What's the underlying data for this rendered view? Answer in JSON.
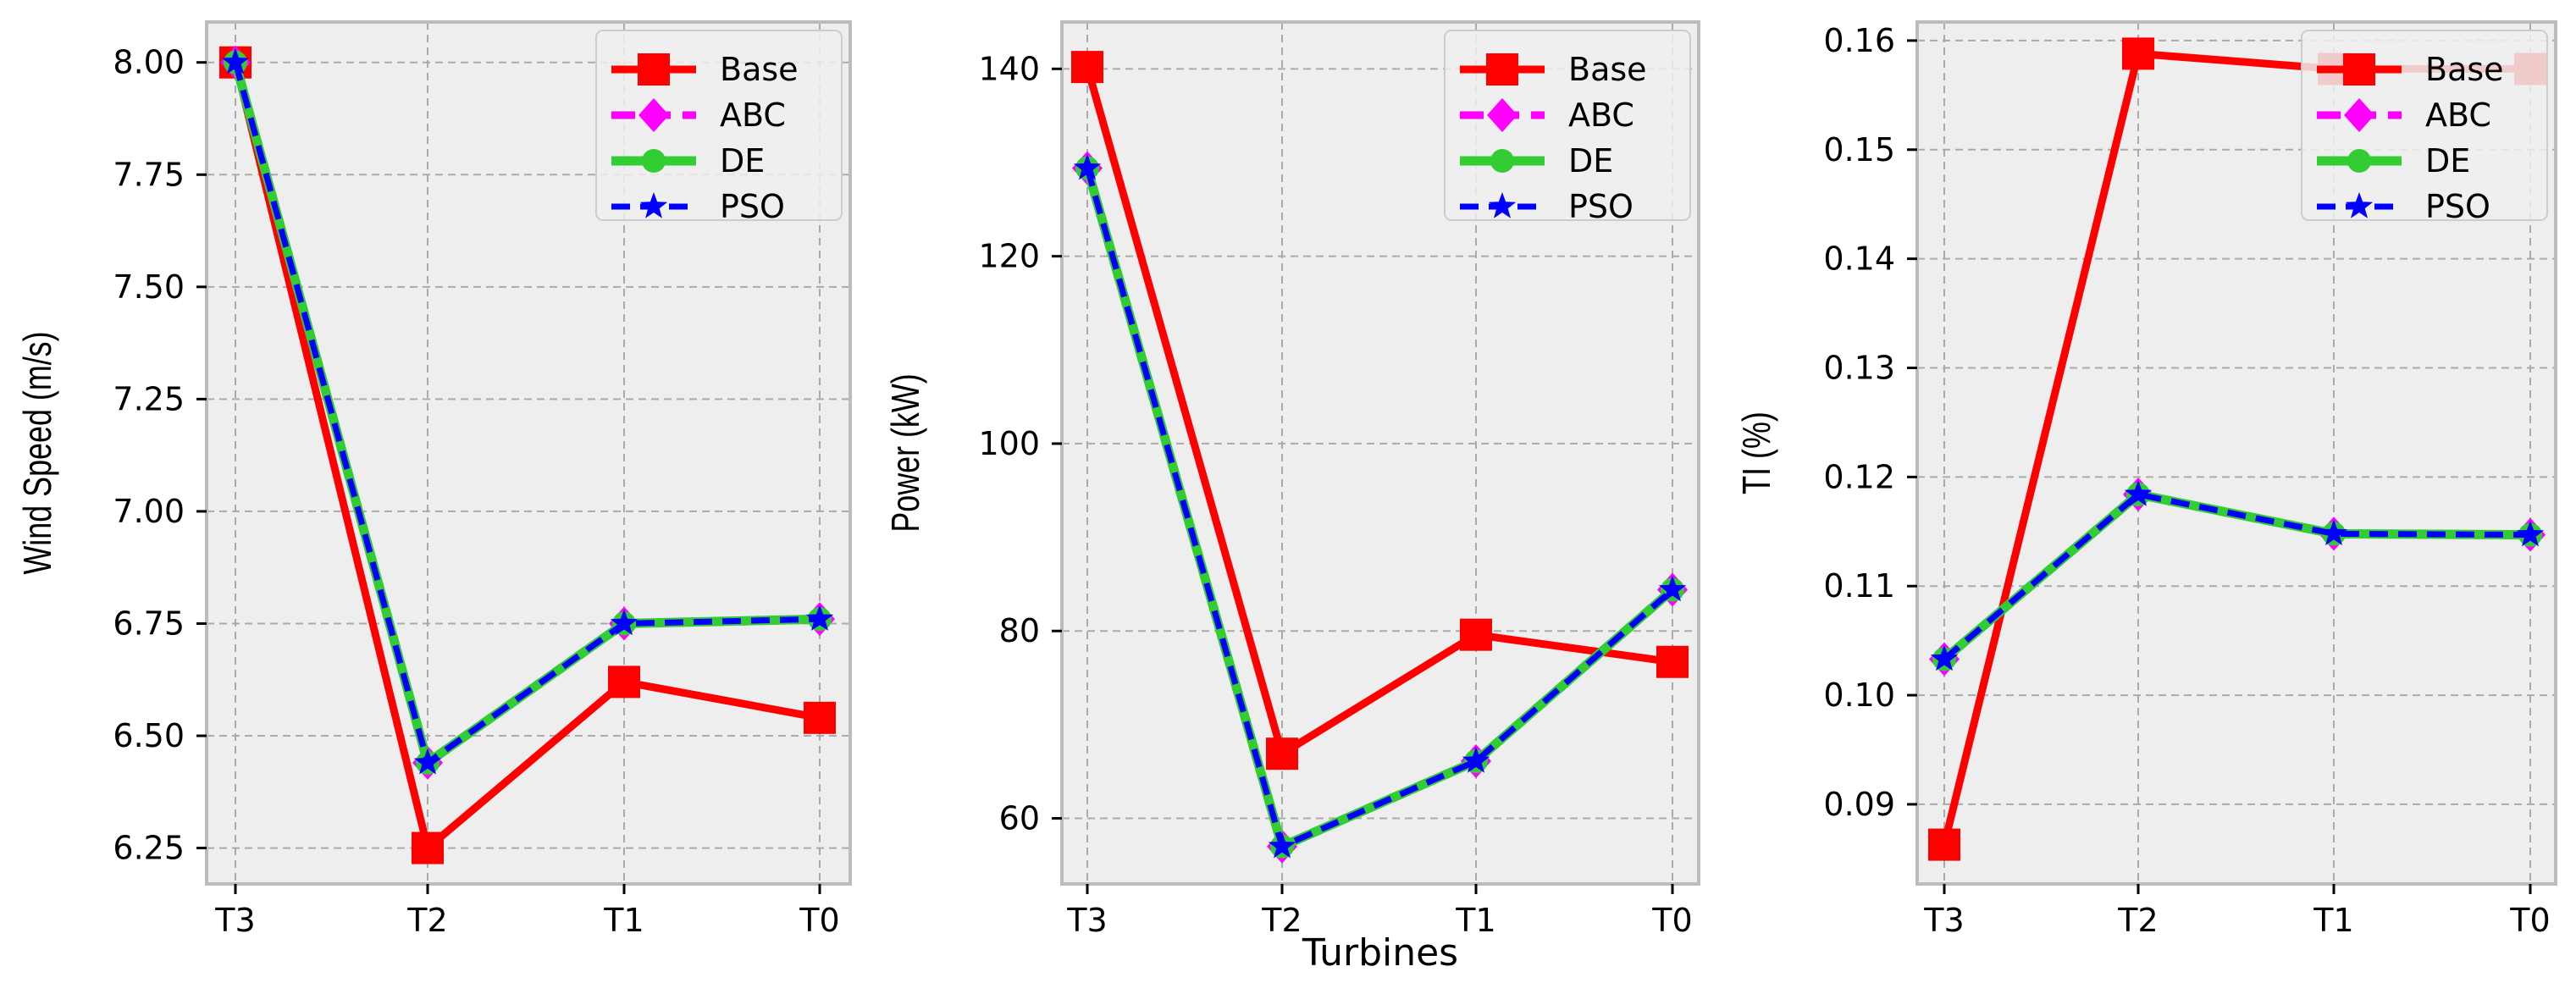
{
  "figure": {
    "shared_xlabel": "Turbines"
  },
  "colors": {
    "Base": "#ff0000",
    "ABC": "#ff00ff",
    "DE": "#32cd32",
    "PSO": "#0000ff",
    "axes_bg": "#eeeeee",
    "grid": "#aaaaaa",
    "spine": "#bcbcbc"
  },
  "chart_data": [
    {
      "type": "line",
      "title": "",
      "xlabel": "",
      "ylabel": "Wind Speed (m/s)",
      "categories": [
        "T3",
        "T2",
        "T1",
        "T0"
      ],
      "ylim": [
        6.17,
        8.09
      ],
      "yticks": [
        6.25,
        6.5,
        6.75,
        7.0,
        7.25,
        7.5,
        7.75,
        8.0
      ],
      "ytick_labels": [
        "6.25",
        "6.50",
        "6.75",
        "7.00",
        "7.25",
        "7.50",
        "7.75",
        "8.00"
      ],
      "grid": true,
      "legend": "top-right",
      "series": [
        {
          "name": "Base",
          "marker": "square",
          "values": [
            8.0,
            6.25,
            6.62,
            6.54
          ]
        },
        {
          "name": "ABC",
          "marker": "diamond",
          "values": [
            8.0,
            6.44,
            6.75,
            6.76
          ]
        },
        {
          "name": "DE",
          "marker": "circle",
          "values": [
            8.0,
            6.44,
            6.75,
            6.76
          ]
        },
        {
          "name": "PSO",
          "marker": "star",
          "values": [
            8.0,
            6.44,
            6.75,
            6.76
          ]
        }
      ]
    },
    {
      "type": "line",
      "title": "",
      "xlabel": "Turbines",
      "ylabel": "Power (kW)",
      "categories": [
        "T3",
        "T2",
        "T1",
        "T0"
      ],
      "ylim": [
        53,
        145
      ],
      "yticks": [
        60,
        80,
        100,
        120,
        140
      ],
      "ytick_labels": [
        "60",
        "80",
        "100",
        "120",
        "140"
      ],
      "grid": true,
      "legend": "top-right",
      "series": [
        {
          "name": "Base",
          "marker": "square",
          "values": [
            140.2,
            66.9,
            79.6,
            76.7
          ]
        },
        {
          "name": "ABC",
          "marker": "diamond",
          "values": [
            129.4,
            57.0,
            66.1,
            84.4
          ]
        },
        {
          "name": "DE",
          "marker": "circle",
          "values": [
            129.4,
            57.0,
            66.1,
            84.4
          ]
        },
        {
          "name": "PSO",
          "marker": "star",
          "values": [
            129.4,
            57.0,
            66.1,
            84.4
          ]
        }
      ]
    },
    {
      "type": "line",
      "title": "",
      "xlabel": "",
      "ylabel": "TI (%)",
      "categories": [
        "T3",
        "T2",
        "T1",
        "T0"
      ],
      "ylim": [
        0.0827,
        0.1617
      ],
      "yticks": [
        0.09,
        0.1,
        0.11,
        0.12,
        0.13,
        0.14,
        0.15,
        0.16
      ],
      "ytick_labels": [
        "0.09",
        "0.10",
        "0.11",
        "0.12",
        "0.13",
        "0.14",
        "0.15",
        "0.16"
      ],
      "grid": true,
      "legend": "top-right",
      "series": [
        {
          "name": "Base",
          "marker": "square",
          "values": [
            0.0863,
            0.1588,
            0.1574,
            0.1574
          ]
        },
        {
          "name": "ABC",
          "marker": "diamond",
          "values": [
            0.1033,
            0.1184,
            0.1148,
            0.1147
          ]
        },
        {
          "name": "DE",
          "marker": "circle",
          "values": [
            0.1033,
            0.1184,
            0.1148,
            0.1147
          ]
        },
        {
          "name": "PSO",
          "marker": "star",
          "values": [
            0.1033,
            0.1184,
            0.1148,
            0.1147
          ]
        }
      ]
    }
  ]
}
